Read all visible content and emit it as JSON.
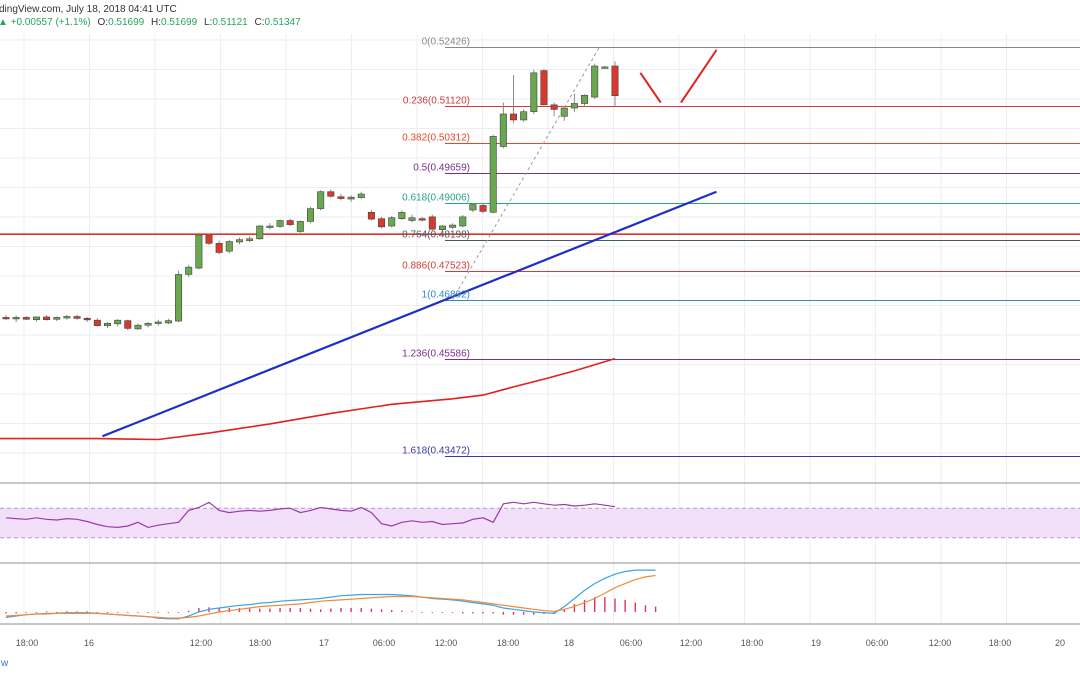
{
  "header": {
    "source": "dingView.com, July 18, 2018 04:41 UTC",
    "change": "+0.00557 (+1.1%)",
    "open_label": "O:",
    "open": "0.51699",
    "high_label": "H:",
    "high": "0.51699",
    "low_label": "L:",
    "low": "0.51121",
    "close_label": "C:",
    "close": "0.51347"
  },
  "footer": {
    "watermark": "w"
  },
  "colors": {
    "bull": "#6aa84f",
    "bear": "#d9382d",
    "trendline": "#1f2ec9",
    "resistance": "#e0332b",
    "ma": "#e3201b",
    "rsi": "#9c3aa8",
    "rsi_band": "#f2e0fa",
    "macd": "#3aa4e8",
    "signal": "#f08a3c",
    "hist": "#d9385a",
    "grid": "#eceef1",
    "fib_line": "#d23b3b"
  },
  "chart_data": [
    {
      "type": "candlestick",
      "pair": "",
      "x_ticks": [
        "18:00",
        "16",
        "12:00",
        "18:00",
        "17",
        "06:00",
        "12:00",
        "18:00",
        "18",
        "06:00",
        "12:00",
        "18:00",
        "19",
        "06:00",
        "12:00",
        "18:00",
        "20"
      ],
      "ylim": [
        0.429,
        0.527
      ],
      "candles": [
        {
          "o": 0.465,
          "h": 0.4655,
          "l": 0.4645,
          "c": 0.4648
        },
        {
          "o": 0.4647,
          "h": 0.4655,
          "l": 0.464,
          "c": 0.465
        },
        {
          "o": 0.465,
          "h": 0.4653,
          "l": 0.4644,
          "c": 0.4646
        },
        {
          "o": 0.4645,
          "h": 0.4652,
          "l": 0.4641,
          "c": 0.4651
        },
        {
          "o": 0.4651,
          "h": 0.4655,
          "l": 0.4643,
          "c": 0.4645
        },
        {
          "o": 0.4646,
          "h": 0.4652,
          "l": 0.4642,
          "c": 0.465
        },
        {
          "o": 0.465,
          "h": 0.4656,
          "l": 0.4645,
          "c": 0.4652
        },
        {
          "o": 0.4652,
          "h": 0.4656,
          "l": 0.4645,
          "c": 0.4648
        },
        {
          "o": 0.4648,
          "h": 0.4651,
          "l": 0.464,
          "c": 0.4645
        },
        {
          "o": 0.4644,
          "h": 0.4648,
          "l": 0.463,
          "c": 0.4632
        },
        {
          "o": 0.4632,
          "h": 0.464,
          "l": 0.4627,
          "c": 0.4637
        },
        {
          "o": 0.4636,
          "h": 0.4646,
          "l": 0.463,
          "c": 0.4644
        },
        {
          "o": 0.4643,
          "h": 0.4645,
          "l": 0.4622,
          "c": 0.4626
        },
        {
          "o": 0.4625,
          "h": 0.4637,
          "l": 0.4622,
          "c": 0.4633
        },
        {
          "o": 0.4633,
          "h": 0.464,
          "l": 0.4628,
          "c": 0.4637
        },
        {
          "o": 0.4637,
          "h": 0.4645,
          "l": 0.4632,
          "c": 0.464
        },
        {
          "o": 0.4638,
          "h": 0.4647,
          "l": 0.4635,
          "c": 0.4643
        },
        {
          "o": 0.4642,
          "h": 0.4752,
          "l": 0.464,
          "c": 0.4744
        },
        {
          "o": 0.4744,
          "h": 0.4765,
          "l": 0.4738,
          "c": 0.476
        },
        {
          "o": 0.4758,
          "h": 0.4835,
          "l": 0.4755,
          "c": 0.483
        },
        {
          "o": 0.483,
          "h": 0.4833,
          "l": 0.4808,
          "c": 0.4812
        },
        {
          "o": 0.4812,
          "h": 0.4818,
          "l": 0.4788,
          "c": 0.4792
        },
        {
          "o": 0.4795,
          "h": 0.482,
          "l": 0.479,
          "c": 0.4816
        },
        {
          "o": 0.4815,
          "h": 0.4825,
          "l": 0.481,
          "c": 0.482
        },
        {
          "o": 0.4818,
          "h": 0.4828,
          "l": 0.4815,
          "c": 0.4822
        },
        {
          "o": 0.4822,
          "h": 0.4852,
          "l": 0.482,
          "c": 0.485
        },
        {
          "o": 0.4848,
          "h": 0.4856,
          "l": 0.4842,
          "c": 0.485
        },
        {
          "o": 0.4849,
          "h": 0.4864,
          "l": 0.4846,
          "c": 0.4862
        },
        {
          "o": 0.4862,
          "h": 0.4866,
          "l": 0.485,
          "c": 0.4853
        },
        {
          "o": 0.4838,
          "h": 0.4862,
          "l": 0.4835,
          "c": 0.486
        },
        {
          "o": 0.486,
          "h": 0.4892,
          "l": 0.4856,
          "c": 0.4888
        },
        {
          "o": 0.4888,
          "h": 0.4928,
          "l": 0.4884,
          "c": 0.4925
        },
        {
          "o": 0.4925,
          "h": 0.493,
          "l": 0.4912,
          "c": 0.4915
        },
        {
          "o": 0.4914,
          "h": 0.492,
          "l": 0.4906,
          "c": 0.491
        },
        {
          "o": 0.4909,
          "h": 0.4917,
          "l": 0.4903,
          "c": 0.4913
        },
        {
          "o": 0.4912,
          "h": 0.4925,
          "l": 0.491,
          "c": 0.492
        },
        {
          "o": 0.488,
          "h": 0.4885,
          "l": 0.4862,
          "c": 0.4865
        },
        {
          "o": 0.4866,
          "h": 0.487,
          "l": 0.4845,
          "c": 0.4848
        },
        {
          "o": 0.485,
          "h": 0.4872,
          "l": 0.4847,
          "c": 0.4868
        },
        {
          "o": 0.4866,
          "h": 0.4884,
          "l": 0.4863,
          "c": 0.488
        },
        {
          "o": 0.4862,
          "h": 0.4875,
          "l": 0.4858,
          "c": 0.4868
        },
        {
          "o": 0.4866,
          "h": 0.487,
          "l": 0.486,
          "c": 0.4864
        },
        {
          "o": 0.487,
          "h": 0.4875,
          "l": 0.484,
          "c": 0.4843
        },
        {
          "o": 0.4842,
          "h": 0.4852,
          "l": 0.4838,
          "c": 0.485
        },
        {
          "o": 0.4847,
          "h": 0.4856,
          "l": 0.4843,
          "c": 0.4852
        },
        {
          "o": 0.485,
          "h": 0.4874,
          "l": 0.4847,
          "c": 0.487
        },
        {
          "o": 0.4885,
          "h": 0.49,
          "l": 0.488,
          "c": 0.4897
        },
        {
          "o": 0.4895,
          "h": 0.4898,
          "l": 0.4878,
          "c": 0.4882
        },
        {
          "o": 0.488,
          "h": 0.505,
          "l": 0.4878,
          "c": 0.5046
        },
        {
          "o": 0.5024,
          "h": 0.512,
          "l": 0.502,
          "c": 0.5095
        },
        {
          "o": 0.5095,
          "h": 0.518,
          "l": 0.5075,
          "c": 0.5082
        },
        {
          "o": 0.5082,
          "h": 0.5105,
          "l": 0.5078,
          "c": 0.51
        },
        {
          "o": 0.51,
          "h": 0.5192,
          "l": 0.5095,
          "c": 0.5185
        },
        {
          "o": 0.519,
          "h": 0.5193,
          "l": 0.5115,
          "c": 0.5115
        },
        {
          "o": 0.5115,
          "h": 0.512,
          "l": 0.509,
          "c": 0.5105
        },
        {
          "o": 0.509,
          "h": 0.5112,
          "l": 0.508,
          "c": 0.5108
        },
        {
          "o": 0.5108,
          "h": 0.514,
          "l": 0.51,
          "c": 0.5118
        },
        {
          "o": 0.5118,
          "h": 0.5138,
          "l": 0.511,
          "c": 0.5136
        },
        {
          "o": 0.5132,
          "h": 0.5205,
          "l": 0.5128,
          "c": 0.52
        },
        {
          "o": 0.5196,
          "h": 0.52,
          "l": 0.5195,
          "c": 0.5198
        },
        {
          "o": 0.52,
          "h": 0.521,
          "l": 0.5112,
          "c": 0.5135
        }
      ],
      "fib_levels": [
        {
          "label": "0(0.52426)",
          "value": 0.52426,
          "color": "#888888"
        },
        {
          "label": "0.236(0.51120)",
          "value": 0.5112,
          "color": "#d23b3b"
        },
        {
          "label": "0.382(0.50312)",
          "value": 0.50312,
          "color": "#e8472b"
        },
        {
          "label": "0.5(0.49659)",
          "value": 0.49659,
          "color": "#7a2f8a"
        },
        {
          "label": "0.618(0.49006)",
          "value": 0.49006,
          "color": "#2aa38a"
        },
        {
          "label": "0.764(0.48198)",
          "value": 0.48198,
          "color": "#455a64"
        },
        {
          "label": "0.886(0.47523)",
          "value": 0.47523,
          "color": "#d23b3b"
        },
        {
          "label": "1(0.46892)",
          "value": 0.46892,
          "color": "#2b8bc8"
        },
        {
          "label": "1.236(0.45586)",
          "value": 0.45586,
          "color": "#7a2f8a"
        },
        {
          "label": "1.618(0.43472)",
          "value": 0.43472,
          "color": "#3a3aa8"
        }
      ],
      "resistance_level": 0.4832,
      "trendline": {
        "from": {
          "bar": 9.5,
          "price": 0.439
        },
        "to": {
          "bar": 70,
          "price": 0.4925
        }
      },
      "ma": [
        {
          "bar": -1,
          "price": 0.4385
        },
        {
          "bar": 9,
          "price": 0.4385
        },
        {
          "bar": 15,
          "price": 0.4383
        },
        {
          "bar": 20,
          "price": 0.4397
        },
        {
          "bar": 26,
          "price": 0.4417
        },
        {
          "bar": 32,
          "price": 0.444
        },
        {
          "bar": 38,
          "price": 0.446
        },
        {
          "bar": 44,
          "price": 0.4472
        },
        {
          "bar": 47,
          "price": 0.448
        },
        {
          "bar": 50,
          "price": 0.4498
        },
        {
          "bar": 53,
          "price": 0.4515
        },
        {
          "bar": 56,
          "price": 0.4533
        },
        {
          "bar": 60,
          "price": 0.456
        }
      ],
      "projection": [
        {
          "from": {
            "bar": 62.5,
            "price": 0.5185
          },
          "to": {
            "bar": 64.5,
            "price": 0.512
          }
        },
        {
          "from": {
            "bar": 66.5,
            "price": 0.512
          },
          "to": {
            "bar": 70,
            "price": 0.5235
          }
        }
      ]
    },
    {
      "type": "line",
      "name": "",
      "ylim": [
        0,
        100
      ],
      "band": [
        30,
        70
      ],
      "values": [
        57,
        56,
        55,
        57,
        55,
        54,
        56,
        55,
        52,
        48,
        45,
        44,
        46,
        51,
        44,
        47,
        49,
        51,
        67,
        71,
        78,
        67,
        64,
        66,
        67,
        66,
        67,
        69,
        70,
        64,
        67,
        71,
        69,
        67,
        66,
        71,
        64,
        49,
        46,
        51,
        53,
        51,
        52,
        48,
        49,
        50,
        55,
        57,
        51,
        76,
        78,
        76,
        78,
        76,
        74,
        75,
        73,
        74,
        76,
        74,
        72
      ]
    },
    {
      "type": "line",
      "name": "",
      "series": [
        {
          "name": "",
          "values": [
            -4,
            -3,
            -2,
            -1.5,
            -1,
            -1,
            -0.5,
            -0.5,
            -0.5,
            -1,
            -1.5,
            -2,
            -2.5,
            -3,
            -3.5,
            -4.5,
            -5,
            -5,
            -3,
            0,
            2,
            3,
            4,
            5,
            5.5,
            6.5,
            7,
            8,
            8.5,
            9,
            9.5,
            10,
            11,
            12,
            12.5,
            13,
            13,
            13,
            13,
            12.5,
            12,
            11,
            10,
            9.5,
            9,
            8,
            7,
            6,
            5,
            3,
            2,
            1,
            0,
            -0.5,
            -1,
            4,
            10,
            16,
            21,
            25,
            28,
            30,
            31,
            31,
            31
          ]
        },
        {
          "name": "",
          "values": [
            -3,
            -2.5,
            -2,
            -1.5,
            -1.5,
            -1,
            -1,
            -1,
            -1,
            -1,
            -1.5,
            -2,
            -2.5,
            -3,
            -3.5,
            -4,
            -4.5,
            -4.5,
            -4,
            -3,
            -1.5,
            0,
            1,
            2,
            3,
            4,
            4.5,
            5,
            5.5,
            6,
            7,
            8,
            8.5,
            9,
            9.5,
            10,
            10.5,
            11,
            11.5,
            11.5,
            11.5,
            11,
            10.5,
            10,
            9.5,
            9,
            8,
            7,
            6,
            5,
            4,
            3,
            2,
            1,
            0.5,
            2,
            4,
            7,
            10,
            14,
            18,
            21,
            24,
            26,
            27
          ]
        }
      ],
      "histogram": [
        -1,
        -1,
        -0.5,
        0,
        0.5,
        0,
        0.5,
        0.5,
        0.5,
        0,
        0,
        0,
        0,
        0,
        0,
        -0.5,
        -0.5,
        -0.5,
        1,
        3,
        3.5,
        3,
        3,
        3,
        2.5,
        2.5,
        2.5,
        3,
        3,
        3,
        2.5,
        2,
        2.5,
        3,
        3,
        3,
        2.5,
        2,
        1.5,
        1,
        0.5,
        0,
        -0.5,
        -0.5,
        -0.5,
        -1,
        -1,
        -1,
        -1,
        -2,
        -2,
        -2,
        -2,
        -1.5,
        -1.5,
        2,
        6,
        9,
        11,
        11,
        10,
        9,
        7,
        5,
        4
      ]
    }
  ]
}
